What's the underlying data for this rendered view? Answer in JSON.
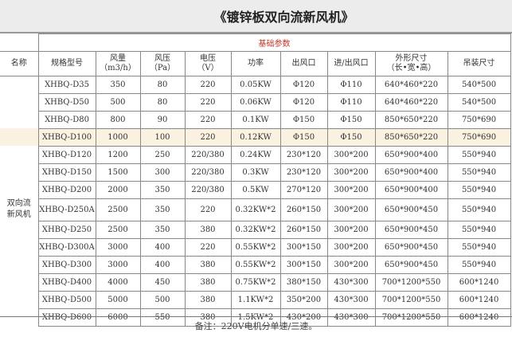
{
  "title": "《镀锌板双向流新风机》",
  "group_header": "基础参数",
  "columns": [
    "名称",
    "规格型号",
    "风量\n（m3/h）",
    "风压\n（Pa）",
    "电压\n（V）",
    "功率",
    "出风口",
    "进/出风口",
    "外形尺寸\n（长•宽•高）",
    "吊装尺寸"
  ],
  "product_name": "双向流\n新风机",
  "highlight_color": "#fbf1e0",
  "rows": [
    [
      "XHBQ-D35",
      "350",
      "80",
      "220",
      "0.05KW",
      "Φ120",
      "Φ110",
      "640*460*220",
      "540*500"
    ],
    [
      "XHBQ-D50",
      "500",
      "80",
      "220",
      "0.06KW",
      "Φ120",
      "Φ110",
      "640*460*220",
      "540*500"
    ],
    [
      "XHBQ-D80",
      "800",
      "90",
      "220",
      "0.1KW",
      "Φ150",
      "Φ150",
      "850*650*220",
      "750*690"
    ],
    [
      "XHBQ-D100",
      "1000",
      "100",
      "220",
      "0.12KW",
      "Φ150",
      "Φ150",
      "850*650*220",
      "750*690"
    ],
    [
      "XHBQ-D120",
      "1200",
      "250",
      "220/380",
      "0.24KW",
      "230*120",
      "300*200",
      "650*900*400",
      "550*940"
    ],
    [
      "XHBQ-D150",
      "1500",
      "300",
      "220/380",
      "0.3KW",
      "230*120",
      "300*200",
      "650*900*400",
      "550*940"
    ],
    [
      "XHBQ-D200",
      "2000",
      "350",
      "220/380",
      "0.5KW",
      "270*120",
      "300*200",
      "650*900*400",
      "550*940"
    ],
    [
      "XHBQ-D250A",
      "2500",
      "350",
      "220",
      "0.32KW*2",
      "260*150",
      "300*200",
      "650*900*450",
      "550*940"
    ],
    [
      "XHBQ-D250",
      "2500",
      "350",
      "380",
      "0.32KW*2",
      "260*150",
      "300*200",
      "650*900*450",
      "550*940"
    ],
    [
      "XHBQ-D300A",
      "3000",
      "400",
      "220",
      "0.55KW*2",
      "300*150",
      "300*200",
      "650*900*450",
      "550*940"
    ],
    [
      "XHBQ-D300",
      "3000",
      "400",
      "380",
      "0.55KW*2",
      "300*150",
      "300*200",
      "650*900*450",
      "550*940"
    ],
    [
      "XHBQ-D400",
      "4000",
      "450",
      "380",
      "0.75KW*2",
      "380*150",
      "430*300",
      "700*1200*550",
      "600*1240"
    ],
    [
      "XHBQ-D500",
      "5000",
      "500",
      "380",
      "1.1KW*2",
      "350*200",
      "430*300",
      "700*1200*550",
      "600*1240"
    ],
    [
      "XHBQ-D600",
      "6000",
      "550",
      "380",
      "1.5KW*2",
      "430*200",
      "430*300",
      "700*1200*550",
      "600*1240"
    ]
  ],
  "highlighted_row": "XHBQ-D100",
  "footer": "备注：220V电机分单速/三速。"
}
